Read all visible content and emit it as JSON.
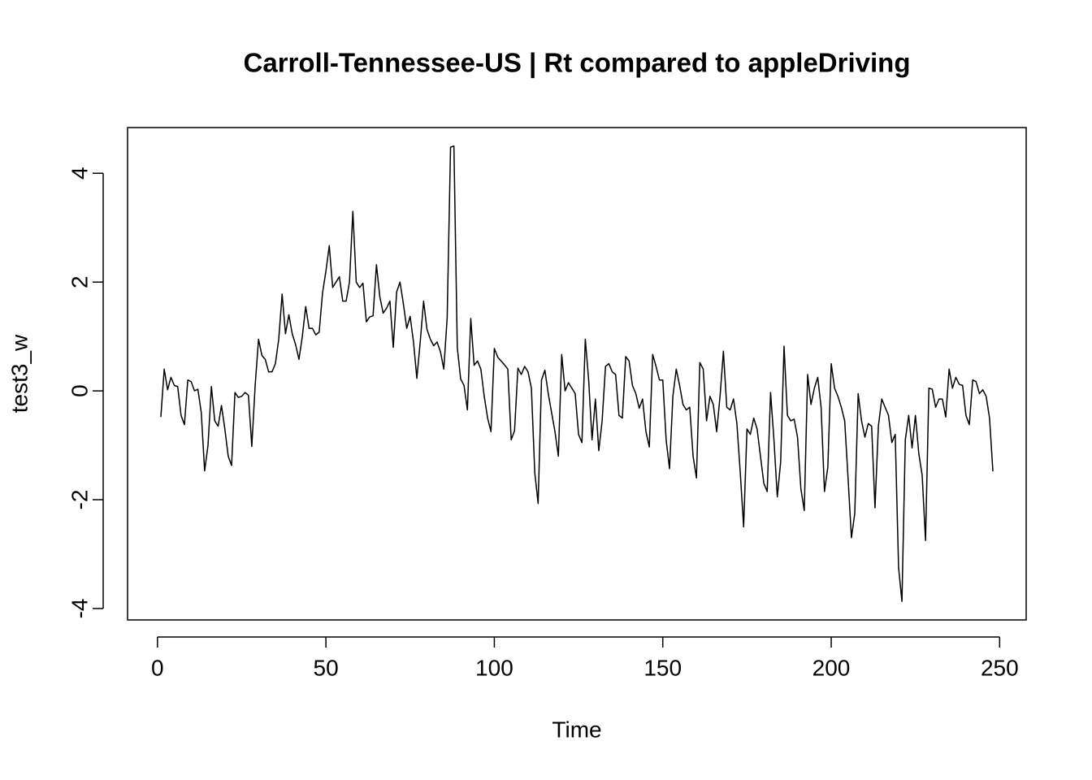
{
  "chart_data": {
    "type": "line",
    "title": "Carroll-Tennessee-US | Rt compared to appleDriving",
    "xlabel": "Time",
    "ylabel": "test3_w",
    "color": "#000000",
    "xlim": [
      -8.88,
      257.88
    ],
    "ylim": [
      -4.21,
      4.84
    ],
    "xticks": [
      0,
      50,
      100,
      150,
      200,
      250
    ],
    "yticks": [
      -4,
      -2,
      0,
      2,
      4
    ],
    "x": [
      1,
      2,
      3,
      4,
      5,
      6,
      7,
      8,
      9,
      10,
      11,
      12,
      13,
      14,
      15,
      16,
      17,
      18,
      19,
      20,
      21,
      22,
      23,
      24,
      25,
      26,
      27,
      28,
      29,
      30,
      31,
      32,
      33,
      34,
      35,
      36,
      37,
      38,
      39,
      40,
      41,
      42,
      43,
      44,
      45,
      46,
      47,
      48,
      49,
      50,
      51,
      52,
      53,
      54,
      55,
      56,
      57,
      58,
      59,
      60,
      61,
      62,
      63,
      64,
      65,
      66,
      67,
      68,
      69,
      70,
      71,
      72,
      73,
      74,
      75,
      76,
      77,
      78,
      79,
      80,
      81,
      82,
      83,
      84,
      85,
      86,
      87,
      88,
      89,
      90,
      91,
      92,
      93,
      94,
      95,
      96,
      97,
      98,
      99,
      100,
      101,
      102,
      103,
      104,
      105,
      106,
      107,
      108,
      109,
      110,
      111,
      112,
      113,
      114,
      115,
      116,
      117,
      118,
      119,
      120,
      121,
      122,
      123,
      124,
      125,
      126,
      127,
      128,
      129,
      130,
      131,
      132,
      133,
      134,
      135,
      136,
      137,
      138,
      139,
      140,
      141,
      142,
      143,
      144,
      145,
      146,
      147,
      148,
      149,
      150,
      151,
      152,
      153,
      154,
      155,
      156,
      157,
      158,
      159,
      160,
      161,
      162,
      163,
      164,
      165,
      166,
      167,
      168,
      169,
      170,
      171,
      172,
      173,
      174,
      175,
      176,
      177,
      178,
      179,
      180,
      181,
      182,
      183,
      184,
      185,
      186,
      187,
      188,
      189,
      190,
      191,
      192,
      193,
      194,
      195,
      196,
      197,
      198,
      199,
      200,
      201,
      202,
      203,
      204,
      205,
      206,
      207,
      208,
      209,
      210,
      211,
      212,
      213,
      214,
      215,
      216,
      217,
      218,
      219,
      220,
      221,
      222,
      223,
      224,
      225,
      226,
      227,
      228,
      229,
      230,
      231,
      232,
      233,
      234,
      235,
      236,
      237,
      238,
      239,
      240,
      241,
      242,
      243,
      244,
      245,
      246,
      247,
      248
    ],
    "values": [
      -0.48,
      0.4,
      0.02,
      0.25,
      0.1,
      0.08,
      -0.45,
      -0.62,
      0.2,
      0.17,
      0.0,
      0.03,
      -0.4,
      -1.47,
      -1.0,
      0.08,
      -0.55,
      -0.65,
      -0.27,
      -0.7,
      -1.2,
      -1.37,
      -0.03,
      -0.12,
      -0.1,
      -0.03,
      -0.08,
      -1.02,
      0.1,
      0.95,
      0.65,
      0.58,
      0.35,
      0.35,
      0.5,
      0.95,
      1.78,
      1.05,
      1.4,
      1.05,
      0.85,
      0.58,
      1.0,
      1.55,
      1.15,
      1.15,
      1.03,
      1.08,
      1.8,
      2.2,
      2.67,
      1.9,
      2.0,
      2.1,
      1.65,
      1.65,
      2.0,
      3.3,
      2.0,
      1.9,
      1.98,
      1.27,
      1.36,
      1.38,
      2.32,
      1.73,
      1.43,
      1.52,
      1.65,
      0.8,
      1.82,
      2.0,
      1.6,
      1.15,
      1.37,
      0.9,
      0.23,
      0.9,
      1.65,
      1.13,
      0.95,
      0.83,
      0.9,
      0.72,
      0.4,
      1.35,
      4.48,
      4.5,
      0.8,
      0.22,
      0.1,
      -0.35,
      1.33,
      0.47,
      0.55,
      0.4,
      -0.1,
      -0.5,
      -0.75,
      0.78,
      0.62,
      0.55,
      0.48,
      0.4,
      -0.9,
      -0.73,
      0.42,
      0.3,
      0.45,
      0.35,
      0.05,
      -1.5,
      -2.07,
      0.2,
      0.38,
      -0.05,
      -0.4,
      -0.75,
      -1.2,
      0.67,
      0.0,
      0.15,
      0.05,
      -0.05,
      -0.8,
      -0.95,
      0.95,
      0.2,
      -0.9,
      -0.15,
      -1.1,
      -0.55,
      0.45,
      0.5,
      0.35,
      0.3,
      -0.45,
      -0.5,
      0.63,
      0.55,
      0.1,
      -0.05,
      -0.32,
      -0.15,
      -0.75,
      -1.03,
      0.67,
      0.45,
      0.2,
      0.2,
      -0.9,
      -1.43,
      -0.1,
      0.4,
      0.1,
      -0.25,
      -0.35,
      -0.3,
      -1.2,
      -1.6,
      0.52,
      0.4,
      -0.55,
      -0.1,
      -0.25,
      -0.75,
      -0.1,
      0.73,
      -0.3,
      -0.35,
      -0.15,
      -0.6,
      -1.5,
      -2.5,
      -0.7,
      -0.8,
      -0.5,
      -0.7,
      -1.2,
      -1.7,
      -1.85,
      -0.03,
      -0.9,
      -1.95,
      -1.3,
      0.82,
      -0.45,
      -0.55,
      -0.52,
      -0.85,
      -1.8,
      -2.2,
      0.3,
      -0.25,
      0.05,
      0.25,
      -0.3,
      -1.85,
      -1.4,
      0.5,
      0.05,
      -0.1,
      -0.3,
      -0.55,
      -1.6,
      -2.7,
      -2.25,
      -0.05,
      -0.55,
      -0.85,
      -0.6,
      -0.65,
      -2.15,
      -0.65,
      -0.15,
      -0.3,
      -0.45,
      -0.95,
      -0.8,
      -3.25,
      -3.87,
      -0.9,
      -0.45,
      -1.05,
      -0.45,
      -1.15,
      -1.55,
      -2.75,
      0.05,
      0.03,
      -0.3,
      -0.15,
      -0.15,
      -0.48,
      0.4,
      0.05,
      0.25,
      0.12,
      0.1,
      -0.45,
      -0.62,
      0.2,
      0.17,
      -0.05,
      0.02,
      -0.1,
      -0.5,
      -1.48
    ]
  }
}
